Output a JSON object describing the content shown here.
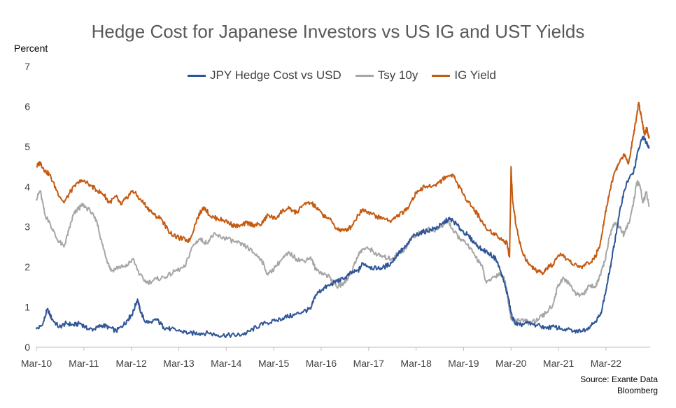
{
  "chart_data": {
    "type": "line",
    "title": "Hedge Cost for Japanese Investors vs US IG and UST Yields",
    "ylabel": "Percent",
    "source_lines": [
      "Source: Exante Data",
      "Bloomberg"
    ],
    "ylim": [
      0,
      7
    ],
    "yticks": [
      "0",
      "1",
      "2",
      "3",
      "4",
      "5",
      "6",
      "7"
    ],
    "xlim": [
      2010.17,
      2023.1
    ],
    "xticks": [
      {
        "label": "Mar-10",
        "x": 2010.17
      },
      {
        "label": "Mar-11",
        "x": 2011.17
      },
      {
        "label": "Mar-12",
        "x": 2012.17
      },
      {
        "label": "Mar-13",
        "x": 2013.17
      },
      {
        "label": "Mar-14",
        "x": 2014.17
      },
      {
        "label": "Mar-15",
        "x": 2015.17
      },
      {
        "label": "Mar-16",
        "x": 2016.17
      },
      {
        "label": "Mar-17",
        "x": 2017.17
      },
      {
        "label": "Mar-18",
        "x": 2018.17
      },
      {
        "label": "Mar-19",
        "x": 2019.17
      },
      {
        "label": "Mar-20",
        "x": 2020.17
      },
      {
        "label": "Mar-21",
        "x": 2021.17
      },
      {
        "label": "Mar-22",
        "x": 2022.17
      }
    ],
    "grid": false,
    "legend_position": "top",
    "series": [
      {
        "name": "JPY Hedge Cost vs USD",
        "color": "#2F5597",
        "points": [
          [
            2010.17,
            0.45
          ],
          [
            2010.3,
            0.55
          ],
          [
            2010.4,
            0.95
          ],
          [
            2010.5,
            0.7
          ],
          [
            2010.65,
            0.5
          ],
          [
            2010.8,
            0.6
          ],
          [
            2010.95,
            0.55
          ],
          [
            2011.1,
            0.6
          ],
          [
            2011.25,
            0.45
          ],
          [
            2011.4,
            0.45
          ],
          [
            2011.55,
            0.55
          ],
          [
            2011.7,
            0.5
          ],
          [
            2011.85,
            0.4
          ],
          [
            2012.0,
            0.55
          ],
          [
            2012.1,
            0.7
          ],
          [
            2012.2,
            0.85
          ],
          [
            2012.3,
            1.2
          ],
          [
            2012.35,
            0.95
          ],
          [
            2012.45,
            0.65
          ],
          [
            2012.6,
            0.6
          ],
          [
            2012.7,
            0.7
          ],
          [
            2012.85,
            0.5
          ],
          [
            2013.0,
            0.45
          ],
          [
            2013.2,
            0.4
          ],
          [
            2013.4,
            0.35
          ],
          [
            2013.6,
            0.35
          ],
          [
            2013.8,
            0.35
          ],
          [
            2014.0,
            0.3
          ],
          [
            2014.2,
            0.3
          ],
          [
            2014.4,
            0.3
          ],
          [
            2014.6,
            0.35
          ],
          [
            2014.8,
            0.5
          ],
          [
            2015.0,
            0.6
          ],
          [
            2015.2,
            0.65
          ],
          [
            2015.4,
            0.75
          ],
          [
            2015.6,
            0.8
          ],
          [
            2015.8,
            0.9
          ],
          [
            2015.95,
            0.95
          ],
          [
            2016.05,
            1.3
          ],
          [
            2016.2,
            1.45
          ],
          [
            2016.35,
            1.55
          ],
          [
            2016.5,
            1.65
          ],
          [
            2016.65,
            1.7
          ],
          [
            2016.8,
            1.85
          ],
          [
            2016.95,
            1.9
          ],
          [
            2017.05,
            2.1
          ],
          [
            2017.2,
            2.0
          ],
          [
            2017.35,
            1.95
          ],
          [
            2017.5,
            2.0
          ],
          [
            2017.65,
            2.1
          ],
          [
            2017.8,
            2.35
          ],
          [
            2017.95,
            2.5
          ],
          [
            2018.1,
            2.75
          ],
          [
            2018.25,
            2.85
          ],
          [
            2018.4,
            2.9
          ],
          [
            2018.55,
            2.95
          ],
          [
            2018.7,
            3.05
          ],
          [
            2018.85,
            3.2
          ],
          [
            2018.95,
            3.15
          ],
          [
            2019.1,
            2.95
          ],
          [
            2019.25,
            2.8
          ],
          [
            2019.4,
            2.6
          ],
          [
            2019.55,
            2.45
          ],
          [
            2019.7,
            2.35
          ],
          [
            2019.85,
            2.2
          ],
          [
            2019.95,
            1.9
          ],
          [
            2020.05,
            1.5
          ],
          [
            2020.12,
            1.2
          ],
          [
            2020.17,
            0.85
          ],
          [
            2020.25,
            0.6
          ],
          [
            2020.35,
            0.55
          ],
          [
            2020.5,
            0.6
          ],
          [
            2020.7,
            0.55
          ],
          [
            2020.9,
            0.5
          ],
          [
            2021.1,
            0.5
          ],
          [
            2021.3,
            0.45
          ],
          [
            2021.5,
            0.4
          ],
          [
            2021.65,
            0.4
          ],
          [
            2021.8,
            0.5
          ],
          [
            2021.95,
            0.65
          ],
          [
            2022.05,
            0.8
          ],
          [
            2022.15,
            1.3
          ],
          [
            2022.25,
            1.9
          ],
          [
            2022.35,
            2.6
          ],
          [
            2022.45,
            3.3
          ],
          [
            2022.55,
            3.9
          ],
          [
            2022.65,
            4.2
          ],
          [
            2022.75,
            4.35
          ],
          [
            2022.85,
            4.9
          ],
          [
            2022.95,
            5.25
          ],
          [
            2023.02,
            5.1
          ],
          [
            2023.08,
            5.0
          ]
        ]
      },
      {
        "name": "Tsy 10y",
        "color": "#A6A6A6",
        "points": [
          [
            2010.17,
            3.7
          ],
          [
            2010.25,
            3.9
          ],
          [
            2010.35,
            3.3
          ],
          [
            2010.45,
            3.1
          ],
          [
            2010.6,
            2.7
          ],
          [
            2010.75,
            2.5
          ],
          [
            2010.85,
            2.9
          ],
          [
            2010.95,
            3.3
          ],
          [
            2011.05,
            3.45
          ],
          [
            2011.15,
            3.55
          ],
          [
            2011.3,
            3.4
          ],
          [
            2011.45,
            3.1
          ],
          [
            2011.55,
            2.6
          ],
          [
            2011.65,
            2.2
          ],
          [
            2011.75,
            1.9
          ],
          [
            2011.9,
            2.0
          ],
          [
            2012.05,
            2.0
          ],
          [
            2012.2,
            2.2
          ],
          [
            2012.35,
            1.8
          ],
          [
            2012.5,
            1.6
          ],
          [
            2012.7,
            1.7
          ],
          [
            2012.9,
            1.75
          ],
          [
            2013.1,
            1.9
          ],
          [
            2013.3,
            2.0
          ],
          [
            2013.45,
            2.5
          ],
          [
            2013.6,
            2.7
          ],
          [
            2013.75,
            2.6
          ],
          [
            2013.9,
            2.8
          ],
          [
            2014.05,
            2.75
          ],
          [
            2014.2,
            2.7
          ],
          [
            2014.4,
            2.6
          ],
          [
            2014.6,
            2.5
          ],
          [
            2014.75,
            2.35
          ],
          [
            2014.9,
            2.2
          ],
          [
            2015.05,
            1.8
          ],
          [
            2015.2,
            2.0
          ],
          [
            2015.35,
            2.2
          ],
          [
            2015.5,
            2.35
          ],
          [
            2015.65,
            2.2
          ],
          [
            2015.8,
            2.15
          ],
          [
            2015.95,
            2.25
          ],
          [
            2016.05,
            1.95
          ],
          [
            2016.2,
            1.85
          ],
          [
            2016.35,
            1.75
          ],
          [
            2016.5,
            1.5
          ],
          [
            2016.65,
            1.6
          ],
          [
            2016.8,
            1.85
          ],
          [
            2016.95,
            2.3
          ],
          [
            2017.05,
            2.45
          ],
          [
            2017.2,
            2.45
          ],
          [
            2017.35,
            2.3
          ],
          [
            2017.5,
            2.25
          ],
          [
            2017.65,
            2.2
          ],
          [
            2017.8,
            2.35
          ],
          [
            2017.95,
            2.45
          ],
          [
            2018.1,
            2.75
          ],
          [
            2018.25,
            2.85
          ],
          [
            2018.4,
            2.95
          ],
          [
            2018.55,
            2.9
          ],
          [
            2018.7,
            3.0
          ],
          [
            2018.85,
            3.15
          ],
          [
            2018.95,
            2.9
          ],
          [
            2019.1,
            2.7
          ],
          [
            2019.25,
            2.55
          ],
          [
            2019.4,
            2.3
          ],
          [
            2019.55,
            2.05
          ],
          [
            2019.65,
            1.6
          ],
          [
            2019.8,
            1.75
          ],
          [
            2019.95,
            1.85
          ],
          [
            2020.05,
            1.65
          ],
          [
            2020.12,
            1.1
          ],
          [
            2020.17,
            0.7
          ],
          [
            2020.25,
            0.65
          ],
          [
            2020.4,
            0.7
          ],
          [
            2020.55,
            0.6
          ],
          [
            2020.75,
            0.7
          ],
          [
            2020.9,
            0.85
          ],
          [
            2021.05,
            1.05
          ],
          [
            2021.15,
            1.5
          ],
          [
            2021.25,
            1.7
          ],
          [
            2021.4,
            1.6
          ],
          [
            2021.55,
            1.3
          ],
          [
            2021.7,
            1.35
          ],
          [
            2021.85,
            1.55
          ],
          [
            2021.95,
            1.5
          ],
          [
            2022.05,
            1.8
          ],
          [
            2022.15,
            2.15
          ],
          [
            2022.25,
            2.8
          ],
          [
            2022.35,
            3.1
          ],
          [
            2022.45,
            3.0
          ],
          [
            2022.55,
            2.8
          ],
          [
            2022.65,
            3.1
          ],
          [
            2022.75,
            3.6
          ],
          [
            2022.82,
            4.1
          ],
          [
            2022.88,
            4.05
          ],
          [
            2022.95,
            3.6
          ],
          [
            2023.02,
            3.85
          ],
          [
            2023.08,
            3.5
          ]
        ]
      },
      {
        "name": "IG Yield",
        "color": "#C55A11",
        "points": [
          [
            2010.17,
            4.5
          ],
          [
            2010.25,
            4.6
          ],
          [
            2010.35,
            4.4
          ],
          [
            2010.45,
            4.3
          ],
          [
            2010.6,
            3.9
          ],
          [
            2010.75,
            3.6
          ],
          [
            2010.9,
            3.9
          ],
          [
            2011.05,
            4.1
          ],
          [
            2011.15,
            4.15
          ],
          [
            2011.3,
            4.05
          ],
          [
            2011.45,
            3.9
          ],
          [
            2011.6,
            3.8
          ],
          [
            2011.7,
            3.6
          ],
          [
            2011.85,
            3.75
          ],
          [
            2011.95,
            3.55
          ],
          [
            2012.05,
            3.7
          ],
          [
            2012.2,
            3.9
          ],
          [
            2012.35,
            3.7
          ],
          [
            2012.5,
            3.5
          ],
          [
            2012.65,
            3.3
          ],
          [
            2012.8,
            3.2
          ],
          [
            2012.95,
            2.9
          ],
          [
            2013.1,
            2.75
          ],
          [
            2013.25,
            2.7
          ],
          [
            2013.4,
            2.65
          ],
          [
            2013.55,
            3.2
          ],
          [
            2013.7,
            3.5
          ],
          [
            2013.85,
            3.25
          ],
          [
            2014.0,
            3.2
          ],
          [
            2014.15,
            3.15
          ],
          [
            2014.3,
            3.05
          ],
          [
            2014.45,
            3.0
          ],
          [
            2014.6,
            3.1
          ],
          [
            2014.75,
            3.05
          ],
          [
            2014.9,
            3.05
          ],
          [
            2015.05,
            3.3
          ],
          [
            2015.2,
            3.2
          ],
          [
            2015.35,
            3.4
          ],
          [
            2015.5,
            3.45
          ],
          [
            2015.65,
            3.35
          ],
          [
            2015.8,
            3.55
          ],
          [
            2015.95,
            3.6
          ],
          [
            2016.05,
            3.5
          ],
          [
            2016.2,
            3.3
          ],
          [
            2016.35,
            3.2
          ],
          [
            2016.5,
            2.95
          ],
          [
            2016.65,
            2.9
          ],
          [
            2016.8,
            3.0
          ],
          [
            2016.95,
            3.3
          ],
          [
            2017.05,
            3.45
          ],
          [
            2017.2,
            3.35
          ],
          [
            2017.35,
            3.25
          ],
          [
            2017.5,
            3.2
          ],
          [
            2017.65,
            3.15
          ],
          [
            2017.8,
            3.3
          ],
          [
            2017.95,
            3.4
          ],
          [
            2018.05,
            3.6
          ],
          [
            2018.2,
            3.9
          ],
          [
            2018.35,
            4.0
          ],
          [
            2018.5,
            4.0
          ],
          [
            2018.65,
            4.1
          ],
          [
            2018.8,
            4.25
          ],
          [
            2018.95,
            4.3
          ],
          [
            2019.05,
            4.05
          ],
          [
            2019.2,
            3.75
          ],
          [
            2019.35,
            3.5
          ],
          [
            2019.5,
            3.25
          ],
          [
            2019.65,
            2.95
          ],
          [
            2019.8,
            2.85
          ],
          [
            2019.95,
            2.7
          ],
          [
            2020.08,
            2.6
          ],
          [
            2020.14,
            2.25
          ],
          [
            2020.17,
            4.5
          ],
          [
            2020.2,
            3.7
          ],
          [
            2020.28,
            3.0
          ],
          [
            2020.4,
            2.4
          ],
          [
            2020.55,
            2.05
          ],
          [
            2020.7,
            1.9
          ],
          [
            2020.85,
            1.85
          ],
          [
            2020.95,
            2.0
          ],
          [
            2021.05,
            2.05
          ],
          [
            2021.2,
            2.3
          ],
          [
            2021.35,
            2.2
          ],
          [
            2021.5,
            2.05
          ],
          [
            2021.65,
            2.0
          ],
          [
            2021.8,
            2.1
          ],
          [
            2021.95,
            2.25
          ],
          [
            2022.05,
            2.6
          ],
          [
            2022.15,
            3.3
          ],
          [
            2022.25,
            3.9
          ],
          [
            2022.35,
            4.35
          ],
          [
            2022.45,
            4.6
          ],
          [
            2022.55,
            4.8
          ],
          [
            2022.65,
            4.6
          ],
          [
            2022.75,
            5.3
          ],
          [
            2022.82,
            5.8
          ],
          [
            2022.86,
            6.1
          ],
          [
            2022.92,
            5.7
          ],
          [
            2022.98,
            5.3
          ],
          [
            2023.03,
            5.45
          ],
          [
            2023.08,
            5.2
          ]
        ]
      }
    ]
  }
}
